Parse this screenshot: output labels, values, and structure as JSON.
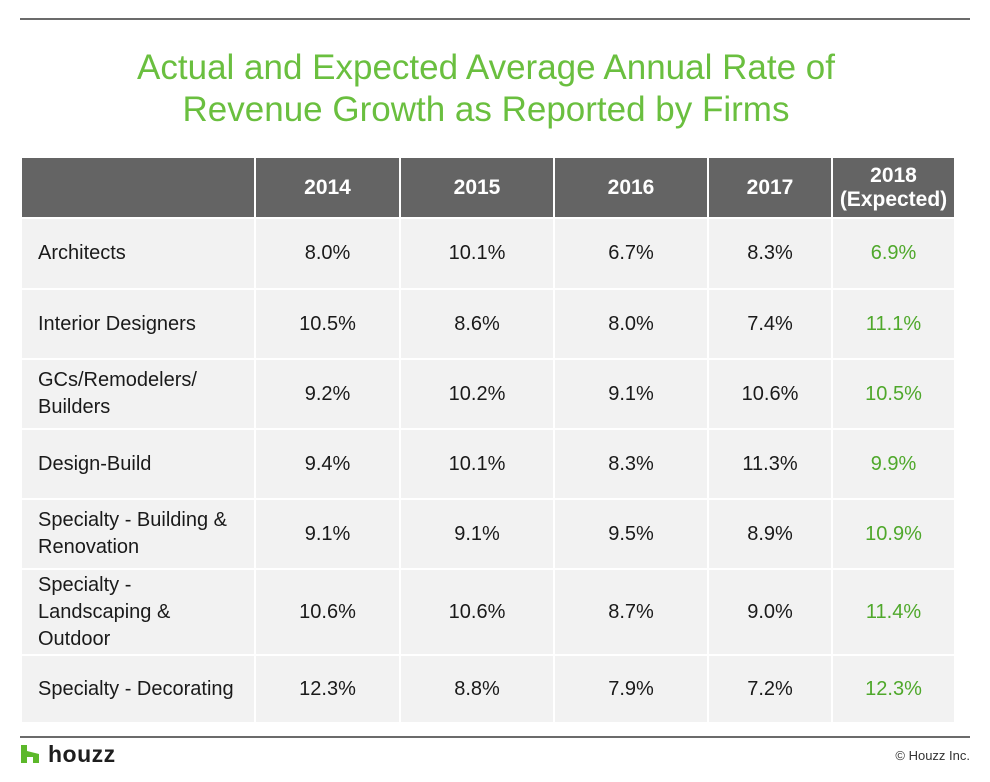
{
  "title": {
    "line1": "Actual and Expected Average Annual Rate of",
    "line2": "Revenue Growth as Reported by Firms"
  },
  "colors": {
    "title_green": "#6abf3f",
    "expected_green": "#4fa82b",
    "header_bg": "#646464",
    "cell_bg": "#f2f2f2",
    "logo_green": "#5cb82a"
  },
  "chart_data": {
    "type": "table",
    "title": "Actual and Expected Average Annual Rate of Revenue Growth as Reported by Firms",
    "columns": [
      "",
      "2014",
      "2015",
      "2016",
      "2017",
      "2018 (Expected)"
    ],
    "header": {
      "col1": "2014",
      "col2": "2015",
      "col3": "2016",
      "col4": "2017",
      "col5_line1": "2018",
      "col5_line2": "(Expected)"
    },
    "rows": [
      {
        "label_lines": [
          "Architects"
        ],
        "label": "Architects",
        "values": [
          "8.0%",
          "10.1%",
          "6.7%",
          "8.3%",
          "6.9%"
        ]
      },
      {
        "label_lines": [
          "Interior Designers"
        ],
        "label": "Interior Designers",
        "values": [
          "10.5%",
          "8.6%",
          "8.0%",
          "7.4%",
          "11.1%"
        ]
      },
      {
        "label_lines": [
          "GCs/Remodelers/",
          "Builders"
        ],
        "label": "GCs/Remodelers/Builders",
        "values": [
          "9.2%",
          "10.2%",
          "9.1%",
          "10.6%",
          "10.5%"
        ]
      },
      {
        "label_lines": [
          "Design-Build"
        ],
        "label": "Design-Build",
        "values": [
          "9.4%",
          "10.1%",
          "8.3%",
          "11.3%",
          "9.9%"
        ]
      },
      {
        "label_lines": [
          "Specialty - Building &",
          "Renovation"
        ],
        "label": "Specialty - Building & Renovation",
        "values": [
          "9.1%",
          "9.1%",
          "9.5%",
          "8.9%",
          "10.9%"
        ]
      },
      {
        "label_lines": [
          "Specialty -",
          "Landscaping &",
          "Outdoor"
        ],
        "label": "Specialty - Landscaping & Outdoor",
        "values": [
          "10.6%",
          "10.6%",
          "8.7%",
          "9.0%",
          "11.4%"
        ]
      },
      {
        "label_lines": [
          "Specialty - Decorating"
        ],
        "label": "Specialty - Decorating",
        "values": [
          "12.3%",
          "8.8%",
          "7.9%",
          "7.2%",
          "12.3%"
        ]
      }
    ]
  },
  "footer": {
    "logo_text": "houzz",
    "copyright": "© Houzz Inc."
  }
}
